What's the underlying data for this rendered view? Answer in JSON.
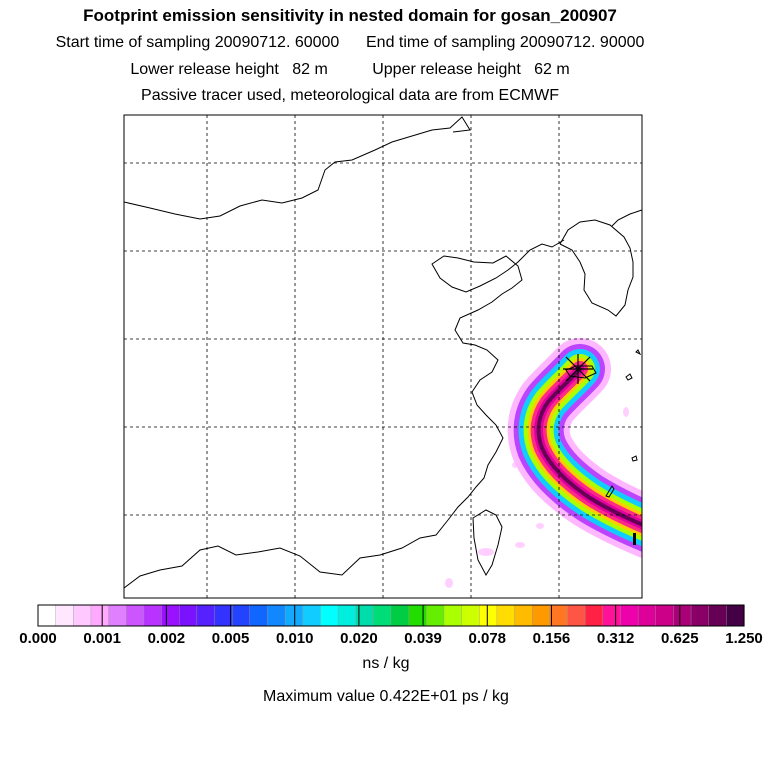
{
  "header": {
    "title": "Footprint emission sensitivity in nested domain for gosan_200907",
    "sampling": "Start time of sampling 20090712. 60000      End time of sampling 20090712. 90000",
    "heights": "Lower release height   82 m          Upper release height   62 m",
    "tracer": "Passive tracer used, meteorological data are from ECMWF"
  },
  "colorbar": {
    "tick_labels": [
      "0.000",
      "0.001",
      "0.002",
      "0.005",
      "0.010",
      "0.020",
      "0.039",
      "0.078",
      "0.156",
      "0.312",
      "0.625",
      "1.250"
    ],
    "colors": [
      "#ffffff",
      "#ffe8ff",
      "#ffc8ff",
      "#ffaaff",
      "#e080ff",
      "#cc55ff",
      "#b833ff",
      "#9a11ff",
      "#7a11ff",
      "#5522ff",
      "#3333ff",
      "#2244ff",
      "#1166ff",
      "#1188ff",
      "#11aaff",
      "#11ccff",
      "#00ffff",
      "#00eedd",
      "#00ddaa",
      "#00dd77",
      "#00cc44",
      "#22dd00",
      "#66ee00",
      "#aaff00",
      "#ccff00",
      "#ffff00",
      "#ffdd00",
      "#ffbb00",
      "#ff9900",
      "#ff7722",
      "#ff5544",
      "#ff2244",
      "#ff1199",
      "#ee00aa",
      "#dd0099",
      "#cc0088",
      "#aa0077",
      "#880066",
      "#660055",
      "#440044"
    ],
    "unit": "ns / kg"
  },
  "footer": {
    "max_value": "Maximum value  0.422E+01 ps / kg"
  },
  "map": {
    "release_site": "gosan",
    "marker_icon": "x-cross-marker",
    "plume_colors": [
      "#ffb8ff",
      "#bb44ff",
      "#11ccff",
      "#aaff00",
      "#ffcc00",
      "#ff2a88",
      "#e0009f",
      "#660055"
    ]
  }
}
